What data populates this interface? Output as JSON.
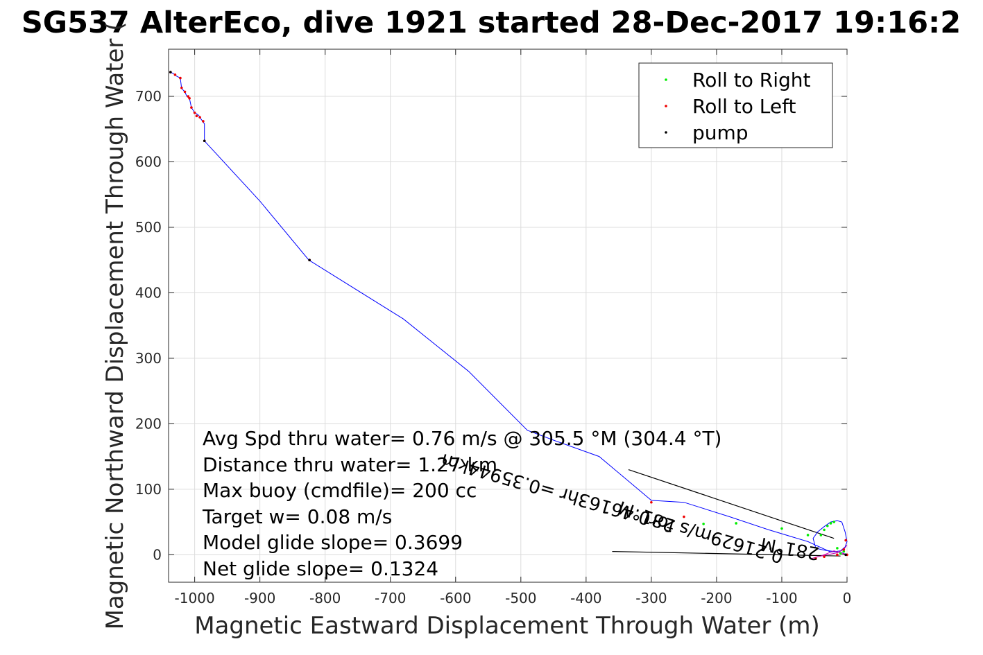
{
  "chart_data": {
    "type": "scatter",
    "title": "SG537 AlterEco, dive 1921 started 28-Dec-2017 19:16:2",
    "xlabel": "Magnetic Eastward Displacement Through Water (m)",
    "ylabel": "Magnetic Northward Displacement Through Water (",
    "xlim": [
      -1040,
      0
    ],
    "ylim": [
      -42,
      772
    ],
    "grid": true,
    "legend_position": "top-right",
    "x_ticks": [
      -1000,
      -900,
      -800,
      -700,
      -600,
      -500,
      -400,
      -300,
      -200,
      -100,
      0
    ],
    "x_tick_labels": [
      "-1000",
      "-900",
      "-800",
      "-700",
      "-600",
      "-500",
      "-400",
      "-300",
      "-200",
      "-100",
      "0"
    ],
    "y_ticks": [
      0,
      100,
      200,
      300,
      400,
      500,
      600,
      700
    ],
    "y_tick_labels": [
      "0",
      "100",
      "200",
      "300",
      "400",
      "500",
      "600",
      "700"
    ],
    "legend": [
      {
        "name": "Roll to Right",
        "color": "#00ee00"
      },
      {
        "name": "Roll to Left",
        "color": "#ee0000"
      },
      {
        "name": "pump",
        "color": "#000000"
      }
    ],
    "series": [
      {
        "kind": "track",
        "color": "#0000ff",
        "x": [
          0,
          -8,
          -20,
          -35,
          -48,
          -52,
          -45,
          -35,
          -25,
          -15,
          -8,
          -3,
          0,
          -3,
          -10,
          -25,
          -60,
          -120,
          -180,
          -250,
          -300,
          -380,
          -450,
          -490,
          -580,
          -680,
          -825,
          -900,
          -985,
          -985,
          -990,
          -993,
          -995,
          -1000,
          -1005,
          -1008,
          -1012,
          -1015,
          -1020,
          -1022,
          -1028,
          -1033,
          -1037
        ],
        "y": [
          0,
          3,
          5,
          7,
          10,
          25,
          35,
          43,
          50,
          52,
          50,
          35,
          20,
          12,
          6,
          4,
          20,
          38,
          58,
          80,
          83,
          150,
          175,
          190,
          280,
          360,
          450,
          540,
          632,
          658,
          665,
          670,
          672,
          675,
          683,
          697,
          700,
          707,
          712,
          728,
          731,
          735,
          737
        ]
      },
      {
        "kind": "track",
        "color": "#cc00aa",
        "x": [
          0,
          -10,
          -20,
          -40,
          -55,
          -45,
          -30,
          -15,
          -5,
          0
        ],
        "y": [
          0,
          3,
          6,
          -2,
          -6,
          -3,
          0,
          3,
          8,
          15
        ]
      },
      {
        "name": "Roll to Right",
        "color": "#00ee00",
        "x": [
          -5,
          -10,
          -15,
          -20,
          -25,
          -30,
          -35,
          -40,
          -60,
          -100,
          -170,
          -220
        ],
        "y": [
          5,
          2,
          10,
          50,
          48,
          44,
          38,
          30,
          30,
          40,
          48,
          47
        ]
      },
      {
        "name": "Roll to Left",
        "color": "#ee0000",
        "x": [
          -1037,
          -1030,
          -1022,
          -1020,
          -1015,
          -1010,
          -1008,
          -1005,
          -1000,
          -997,
          -992,
          -987,
          -985,
          -824,
          -300,
          -250,
          -48,
          -35,
          -15,
          -5,
          -2,
          0
        ],
        "y": [
          737,
          733,
          728,
          713,
          707,
          700,
          697,
          683,
          675,
          670,
          668,
          662,
          632,
          450,
          80,
          58,
          -6,
          -3,
          0,
          8,
          22,
          0
        ]
      },
      {
        "name": "pump",
        "color": "#000000",
        "x": [
          -1037,
          -985,
          -824,
          -2
        ],
        "y": [
          737,
          632,
          450,
          0
        ]
      }
    ],
    "reference_lines": [
      {
        "x": [
          -335,
          -20
        ],
        "y": [
          130,
          25
        ]
      },
      {
        "x": [
          -360,
          -10
        ],
        "y": [
          5,
          -2
        ]
      }
    ],
    "annotations": [
      "Avg Spd thru water=  0.76 m/s @ 305.5 °M (304.4 °T)",
      "Distance thru water=  1.27 km",
      "Max buoy (cmdfile)= 200 cc",
      "Target w= 0.08 m/s",
      "Model glide slope= 0.3699",
      "Net glide slope= 0.1324"
    ],
    "rotated_labels": [
      "0.21629m/s for0.46163hr =0.35944km",
      "281°M",
      "281°M"
    ]
  }
}
